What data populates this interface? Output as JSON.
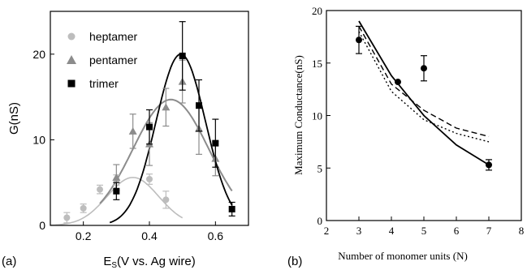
{
  "chart_data": [
    {
      "panel_label": "(a)",
      "type": "scatter",
      "xlabel": "E",
      "xlabel_sub": "S",
      "xlabel_rest": "(V vs. Ag wire)",
      "ylabel": "G(nS)",
      "xlim": [
        0.1,
        0.7
      ],
      "ylim": [
        0,
        25
      ],
      "x_ticks": [
        0.2,
        0.4,
        0.6
      ],
      "y_ticks": [
        0,
        10,
        20
      ],
      "legend_position": "top-left",
      "colors": {
        "heptamer": "#bdbdbd",
        "pentamer": "#8c8c8c",
        "trimer": "#000000"
      },
      "series": [
        {
          "name": "heptamer",
          "marker": "circle",
          "points": [
            {
              "x": 0.15,
              "y": 0.9,
              "err": 0.6
            },
            {
              "x": 0.2,
              "y": 2.0,
              "err": 0.5
            },
            {
              "x": 0.25,
              "y": 4.2,
              "err": 0.5
            },
            {
              "x": 0.3,
              "y": 5.3,
              "err": 0.6
            },
            {
              "x": 0.4,
              "y": 5.4,
              "err": 0.6
            },
            {
              "x": 0.45,
              "y": 3.0,
              "err": 1.0
            }
          ],
          "fit": {
            "peak": 5.6,
            "center": 0.35,
            "width": 0.078,
            "from": 0.1,
            "to": 0.5
          }
        },
        {
          "name": "pentamer",
          "marker": "triangle",
          "points": [
            {
              "x": 0.3,
              "y": 5.6,
              "err": 1.5
            },
            {
              "x": 0.35,
              "y": 11.0,
              "err": 2.0
            },
            {
              "x": 0.4,
              "y": 9.5,
              "err": 2.5
            },
            {
              "x": 0.45,
              "y": 13.8,
              "err": 2.2
            },
            {
              "x": 0.5,
              "y": 16.8,
              "err": 2.5
            },
            {
              "x": 0.55,
              "y": 11.3,
              "err": 3.0
            },
            {
              "x": 0.6,
              "y": 7.8,
              "err": 2.0
            }
          ],
          "fit": {
            "peak": 14.7,
            "center": 0.465,
            "width": 0.115,
            "from": 0.25,
            "to": 0.65
          }
        },
        {
          "name": "trimer",
          "marker": "square",
          "points": [
            {
              "x": 0.3,
              "y": 4.0,
              "err": 1.0
            },
            {
              "x": 0.4,
              "y": 11.5,
              "err": 2.0
            },
            {
              "x": 0.5,
              "y": 19.8,
              "err": 4.0
            },
            {
              "x": 0.55,
              "y": 14.0,
              "err": 3.0
            },
            {
              "x": 0.6,
              "y": 9.6,
              "err": 2.8
            },
            {
              "x": 0.65,
              "y": 1.9,
              "err": 0.8
            }
          ],
          "fit": {
            "peak": 20.0,
            "center": 0.495,
            "width": 0.075,
            "from": 0.28,
            "to": 0.65
          }
        }
      ]
    },
    {
      "panel_label": "(b)",
      "type": "scatter",
      "xlabel": "Number of monomer units (N)",
      "ylabel": "Maximum Conductance(nS)",
      "xlim": [
        2,
        8
      ],
      "ylim": [
        0,
        20
      ],
      "x_ticks": [
        2,
        3,
        4,
        5,
        6,
        7,
        8
      ],
      "y_ticks": [
        0,
        5,
        10,
        15,
        20
      ],
      "points": [
        {
          "x": 3,
          "y": 17.2,
          "err": 1.3
        },
        {
          "x": 4.2,
          "y": 13.2,
          "err": 0.0
        },
        {
          "x": 5,
          "y": 14.5,
          "err": 1.2
        },
        {
          "x": 7,
          "y": 5.3,
          "err": 0.5
        }
      ],
      "curves": [
        {
          "style": "solid",
          "x": [
            3,
            4,
            5,
            6,
            7
          ],
          "y": [
            19.0,
            13.8,
            10.0,
            7.2,
            5.3
          ]
        },
        {
          "style": "dashed",
          "x": [
            3,
            4,
            5,
            6,
            7
          ],
          "y": [
            18.5,
            13.0,
            10.5,
            8.8,
            8.0
          ]
        },
        {
          "style": "dotted",
          "x": [
            3,
            4,
            5,
            6,
            7
          ],
          "y": [
            18.0,
            12.3,
            9.6,
            8.3,
            7.5
          ]
        }
      ]
    }
  ]
}
